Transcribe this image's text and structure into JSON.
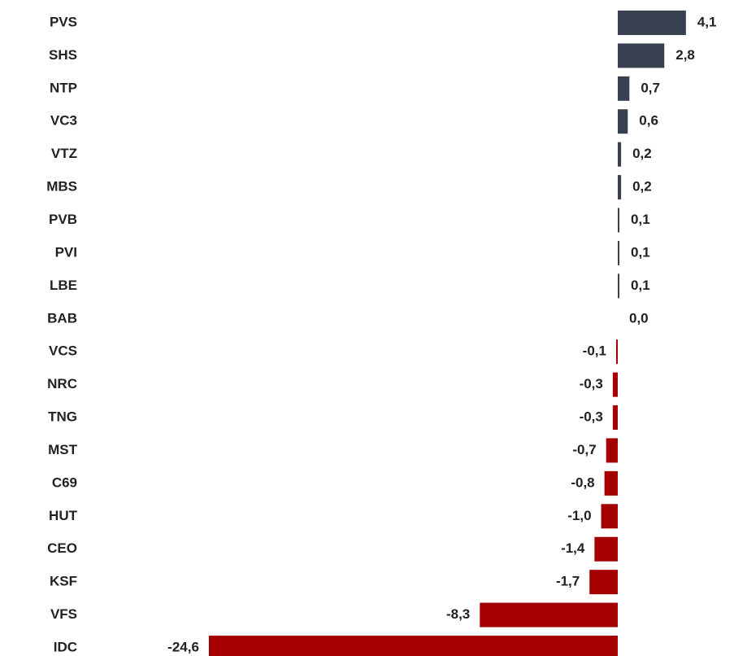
{
  "chart_data": {
    "type": "hbar",
    "categories": [
      "PVS",
      "SHS",
      "NTP",
      "VC3",
      "VTZ",
      "MBS",
      "PVB",
      "PVI",
      "LBE",
      "BAB",
      "VCS",
      "NRC",
      "TNG",
      "MST",
      "C69",
      "HUT",
      "CEO",
      "KSF",
      "VFS",
      "IDC"
    ],
    "values": [
      4.1,
      2.8,
      0.7,
      0.6,
      0.2,
      0.2,
      0.1,
      0.1,
      0.1,
      0.0,
      -0.1,
      -0.3,
      -0.3,
      -0.7,
      -0.8,
      -1.0,
      -1.4,
      -1.7,
      -8.3,
      -24.6
    ],
    "value_labels": [
      "4,1",
      "2,8",
      "0,7",
      "0,6",
      "0,2",
      "0,2",
      "0,1",
      "0,1",
      "0,1",
      "0,0",
      "-0,1",
      "-0,3",
      "-0,3",
      "-0,7",
      "-0,8",
      "-1,0",
      "-1,4",
      "-1,7",
      "-8,3",
      "-24,6"
    ],
    "positive_color": "#36404f",
    "negative_color": "#a50000"
  }
}
